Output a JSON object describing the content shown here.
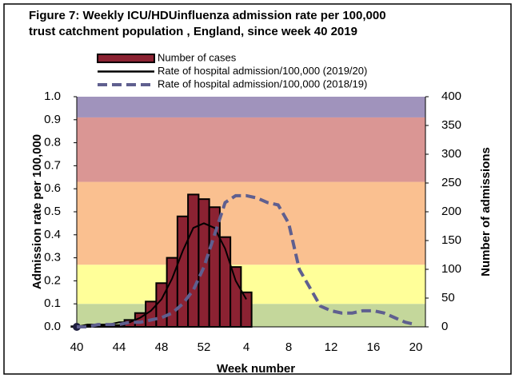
{
  "chart_data": {
    "type": "bar_line",
    "title": [
      "Figure 7: Weekly ICU/HDUinfluenza admission rate per 100,000",
      "trust catchment population , England, since week 40 2019"
    ],
    "x_label": "Week number",
    "y_label": "Admission rate per 100,000",
    "y2_label": "Number of admissions",
    "categories": [
      "40",
      null,
      null,
      null,
      "44",
      null,
      null,
      null,
      "48",
      null,
      null,
      null,
      "52",
      null,
      null,
      null,
      "4",
      null,
      null,
      null,
      "8",
      null,
      null,
      null,
      "12",
      null,
      null,
      null,
      "16",
      null,
      null,
      null,
      "20"
    ],
    "ylim": [
      0,
      1.0
    ],
    "yticks": [
      {
        "value": 0,
        "label": "0.0"
      },
      {
        "value": 0.1,
        "label": "0.1"
      },
      {
        "value": 0.2,
        "label": "0.2"
      },
      {
        "value": 0.3,
        "label": "0.3"
      },
      {
        "value": 0.4,
        "label": "0.4"
      },
      {
        "value": 0.5,
        "label": "0.5"
      },
      {
        "value": 0.6,
        "label": "0.6"
      },
      {
        "value": 0.7,
        "label": "0.7"
      },
      {
        "value": 0.8,
        "label": "0.8"
      },
      {
        "value": 0.9,
        "label": "0.9"
      },
      {
        "value": 1.0,
        "label": "1.0"
      }
    ],
    "y2lim": [
      0,
      400
    ],
    "y2ticks": [
      0,
      50,
      100,
      150,
      200,
      250,
      300,
      350,
      400
    ],
    "bands": [
      {
        "from": 0,
        "to": 0.1,
        "color": "#c4d79b"
      },
      {
        "from": 0.1,
        "to": 0.27,
        "color": "#ffff99"
      },
      {
        "from": 0.27,
        "to": 0.63,
        "color": "#fac090"
      },
      {
        "from": 0.63,
        "to": 0.91,
        "color": "#da9694"
      },
      {
        "from": 0.91,
        "to": 1.0,
        "color": "#a093bc"
      }
    ],
    "series": [
      {
        "name": "Number of cases",
        "kind": "bar",
        "axis": "y2",
        "color": "#8b2232",
        "values": [
          1,
          2,
          2,
          3,
          3,
          12,
          24,
          44,
          76,
          120,
          192,
          230,
          222,
          208,
          156,
          104,
          60,
          null,
          null,
          null,
          null,
          null,
          null,
          null,
          null,
          null,
          null,
          null,
          null,
          null,
          null,
          null,
          null
        ]
      },
      {
        "name": "Rate of hospital admission/100,000 (2019/20)",
        "kind": "line",
        "color": "#000000",
        "dash": false,
        "start_marker": true,
        "values": [
          0,
          0.01,
          0.01,
          0.01,
          0.02,
          0.02,
          0.04,
          0.07,
          0.12,
          0.21,
          0.33,
          0.43,
          0.45,
          0.43,
          0.34,
          0.2,
          0.12,
          null,
          null,
          null,
          null,
          null,
          null,
          null,
          null,
          null,
          null,
          null,
          null,
          null,
          null,
          null,
          null
        ]
      },
      {
        "name": "Rate of hospital admission/100,000 (2018/19)",
        "kind": "line",
        "color": "#5f5f8f",
        "dash": true,
        "values": [
          0,
          0,
          0.01,
          0.01,
          0.01,
          0.02,
          0.02,
          0.03,
          0.04,
          0.06,
          0.1,
          0.16,
          0.26,
          0.4,
          0.54,
          0.57,
          0.57,
          0.56,
          0.54,
          0.53,
          0.45,
          0.25,
          0.17,
          0.09,
          0.07,
          0.06,
          0.06,
          0.07,
          0.07,
          0.06,
          0.04,
          0.02,
          0.01
        ]
      }
    ]
  }
}
